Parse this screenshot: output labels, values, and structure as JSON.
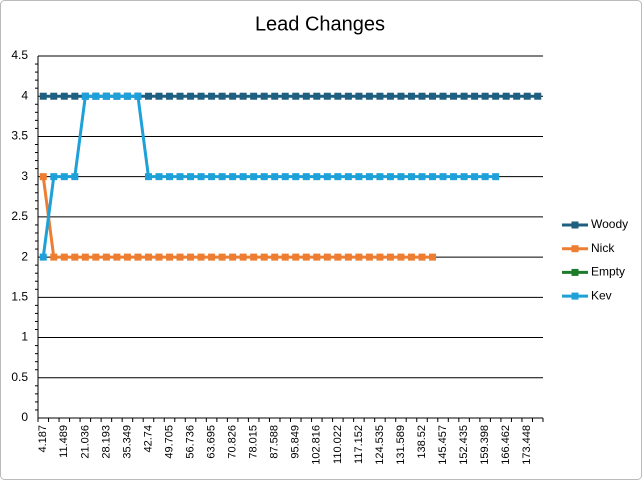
{
  "chart_data": {
    "type": "line",
    "title": "Lead Changes",
    "categories": [
      "4.187",
      null,
      "11.489",
      null,
      "21.036",
      null,
      "28.193",
      null,
      "35.349",
      null,
      "42.74",
      null,
      "49.705",
      null,
      "56.736",
      null,
      "63.695",
      null,
      "70.826",
      null,
      "78.015",
      null,
      "87.588",
      null,
      "95.849",
      null,
      "102.816",
      null,
      "110.022",
      null,
      "117.152",
      null,
      "124.535",
      null,
      "131.589",
      null,
      "138.52",
      null,
      "145.457",
      null,
      "152.435",
      null,
      "159.398",
      null,
      "166.462",
      null,
      "173.448",
      null
    ],
    "series": [
      {
        "name": "Woody",
        "color": "#1f5f80",
        "values": [
          4,
          4,
          4,
          4,
          4,
          4,
          4,
          4,
          4,
          4,
          4,
          4,
          4,
          4,
          4,
          4,
          4,
          4,
          4,
          4,
          4,
          4,
          4,
          4,
          4,
          4,
          4,
          4,
          4,
          4,
          4,
          4,
          4,
          4,
          4,
          4,
          4,
          4,
          4,
          4,
          4,
          4,
          4,
          4,
          4,
          4,
          4,
          4
        ]
      },
      {
        "name": "Nick",
        "color": "#ed7d31",
        "values": [
          3,
          2,
          2,
          2,
          2,
          2,
          2,
          2,
          2,
          2,
          2,
          2,
          2,
          2,
          2,
          2,
          2,
          2,
          2,
          2,
          2,
          2,
          2,
          2,
          2,
          2,
          2,
          2,
          2,
          2,
          2,
          2,
          2,
          2,
          2,
          2,
          2,
          2,
          null,
          null,
          null,
          null,
          null,
          null,
          null,
          null,
          null,
          null
        ]
      },
      {
        "name": "Empty",
        "color": "#1e7b2a",
        "values": [
          null,
          null,
          null,
          null,
          null,
          null,
          null,
          null,
          null,
          null,
          null,
          null,
          null,
          null,
          null,
          null,
          null,
          null,
          null,
          null,
          null,
          null,
          null,
          null,
          null,
          null,
          null,
          null,
          null,
          null,
          null,
          null,
          null,
          null,
          null,
          null,
          null,
          null,
          null,
          null,
          null,
          null,
          null,
          null,
          null,
          null,
          null,
          null
        ]
      },
      {
        "name": "Kev",
        "color": "#1ea0d8",
        "values": [
          2,
          3,
          3,
          3,
          4,
          4,
          4,
          4,
          4,
          4,
          3,
          3,
          3,
          3,
          3,
          3,
          3,
          3,
          3,
          3,
          3,
          3,
          3,
          3,
          3,
          3,
          3,
          3,
          3,
          3,
          3,
          3,
          3,
          3,
          3,
          3,
          3,
          3,
          3,
          3,
          3,
          3,
          3,
          3,
          null,
          null,
          null,
          null
        ]
      }
    ],
    "ylim": [
      0,
      4.5
    ],
    "yticks": [
      0,
      0.5,
      1,
      1.5,
      2,
      2.5,
      3,
      3.5,
      4,
      4.5
    ],
    "grid": true,
    "legend": "right"
  }
}
